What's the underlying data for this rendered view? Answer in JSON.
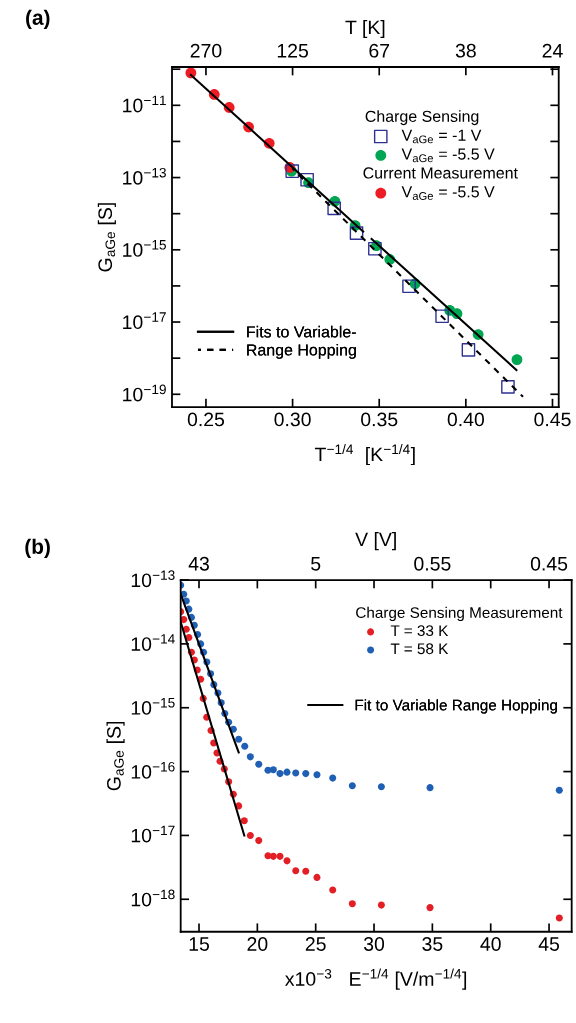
{
  "chart_data": [
    {
      "type": "scatter",
      "title": "(a)",
      "xlabel": "T$^{−1/4}$  [K$^{−1/4}$]",
      "ylabel": "G$_{aGe}$ [S]",
      "x2label": "T [K]",
      "legend_title": "Charge Sensing",
      "annotations": [
        "Current Measurement",
        "270",
        "125",
        "67",
        "38",
        "24"
      ],
      "log": "y",
      "legend": "right",
      "grid": false,
      "xlim": [
        0.2304,
        0.4536
      ],
      "xticks": [
        {
          "value": 0.25,
          "label": "0.25"
        },
        {
          "value": 0.3,
          "label": "0.30"
        },
        {
          "value": 0.35,
          "label": "0.35"
        },
        {
          "value": 0.4,
          "label": "0.40"
        },
        {
          "value": 0.45,
          "label": "0.45"
        }
      ],
      "ylim": [
        4.4e-20,
        1.15e-10
      ],
      "yticks": [
        {
          "value": 1e-10,
          "label": null
        },
        {
          "value": 1e-11,
          "label": "10$^{−11}$"
        },
        {
          "value": 1e-12,
          "label": null
        },
        {
          "value": 1e-13,
          "label": "10$^{−13}$"
        },
        {
          "value": 1e-14,
          "label": null
        },
        {
          "value": 1e-15,
          "label": "10$^{−15}$"
        },
        {
          "value": 1e-16,
          "label": null
        },
        {
          "value": 1e-17,
          "label": "10$^{−17}$"
        },
        {
          "value": 1e-18,
          "label": null
        },
        {
          "value": 1e-19,
          "label": "10$^{−19}$"
        }
      ],
      "series": [
        {
          "type": "line",
          "name": "Fits to Variable-",
          "color": "#000000",
          "line_style": "solid",
          "x": [
            0.2413,
            0.3407,
            0.343,
            0.3456,
            0.4292
          ],
          "values": [
            6.9e-11,
            3.2e-15,
            null,
            2e-15,
            4.7e-19
          ]
        },
        {
          "type": "line",
          "name": "Range Hopping",
          "color": "#000000",
          "line_style": "dashed",
          "x": [
            0.2998,
            0.433
          ],
          "values": [
            1.8e-13,
            8.5e-20
          ]
        },
        {
          "name": "V$_{aGe}$ = -1 V",
          "color": "#2e3192",
          "marker": "square",
          "x": [
            0.2998,
            0.3084,
            0.324,
            0.3369,
            0.3475,
            0.3672,
            0.3863,
            0.4015,
            0.4243
          ],
          "values": [
            1.5e-13,
            8.7e-14,
            1.4e-14,
            2.9e-15,
            1.07e-15,
            9.8e-17,
            1.45e-17,
            1.7e-18,
            1.6e-19
          ]
        },
        {
          "name": "V$_{aGe}$ = -5.5 V",
          "color": "#00a651",
          "marker": "circle",
          "x": [
            0.2994,
            0.3092,
            0.3244,
            0.3361,
            0.3484,
            0.3561,
            0.3707,
            0.3907,
            0.3949,
            0.4071,
            0.4295
          ],
          "values": [
            1.5e-13,
            7.2e-14,
            2.2e-14,
            4.7e-15,
            1.3e-15,
            5.4e-16,
            1.15e-16,
            2.1e-17,
            1.7e-17,
            4.5e-18,
            9.1e-19
          ]
        },
        {
          "name": "V$_{aGe}$ = -5.5 V",
          "color": "#ed1c24",
          "marker": "circle",
          "x": [
            0.2413,
            0.2548,
            0.2634,
            0.2746,
            0.2865,
            0.2984
          ],
          "values": [
            7.9e-11,
            2e-11,
            8.7e-12,
            2.5e-12,
            8.9e-13,
            1.9e-13
          ]
        }
      ]
    },
    {
      "type": "scatter",
      "title": "(b)",
      "xlabel": "x10$^{−3}$   E$^{−1/4}$ [V/m$^{−1/4}$]",
      "ylabel": "G$_{aGe}$ [S]",
      "x2label": "V [V]",
      "legend_title": "Charge Sensing Measurement",
      "log": "y",
      "legend": "top right",
      "grid": false,
      "xlim": [
        13.43,
        46.94
      ],
      "xticks": [
        15,
        20,
        25,
        30,
        35,
        40,
        45
      ],
      "annotations": [
        "43",
        "5",
        "0.55",
        "0.45"
      ],
      "ylim": [
        3.1e-19,
        1e-13
      ],
      "yticks": [
        {
          "value": 1e-13,
          "label": "10$^{−13}$"
        },
        {
          "value": 1e-14,
          "label": "10$^{−14}$"
        },
        {
          "value": 1e-15,
          "label": "10$^{−15}$"
        },
        {
          "value": 1e-16,
          "label": "10$^{−16}$"
        },
        {
          "value": 1e-17,
          "label": "10$^{−17}$"
        },
        {
          "value": 1e-18,
          "label": "10$^{−18}$"
        }
      ],
      "series": [
        {
          "name": "T = 33 K",
          "color": "#e31e24",
          "marker": "circle",
          "x": [
            13.43,
            13.69,
            13.91,
            14.13,
            14.35,
            14.6,
            14.85,
            15.14,
            15.36,
            15.66,
            16.03,
            16.26,
            16.54,
            16.8,
            17.17,
            17.54,
            17.94,
            18.4,
            18.88,
            19.4,
            20.12,
            20.91,
            21.37,
            21.94,
            22.54,
            23.29,
            24.15,
            25.11,
            26.46,
            28.14,
            30.63,
            34.8,
            45.88
          ],
          "values": [
            3.2e-14,
            2.4e-14,
            1.7e-14,
            1.26e-14,
            7.4e-15,
            5.6e-15,
            3.9e-15,
            2.8e-15,
            1.4e-15,
            7.1e-16,
            4.4e-16,
            2.8e-16,
            1.95e-16,
            1.45e-16,
            1.1e-16,
            6.9e-17,
            4.4e-17,
            2.9e-17,
            1.7e-17,
            1e-17,
            8.3e-18,
            4.8e-18,
            4.7e-18,
            4.7e-18,
            4e-18,
            2.8e-18,
            2.75e-18,
            2.2e-18,
            1.4e-18,
            8.5e-19,
            8.1e-19,
            7.4e-19,
            5.1e-19
          ]
        },
        {
          "name": "T = 58 K",
          "color": "#1f5fb4",
          "marker": "circle",
          "x": [
            13.43,
            13.69,
            13.91,
            14.13,
            14.35,
            14.6,
            14.88,
            15.14,
            15.39,
            15.67,
            15.99,
            16.27,
            16.62,
            16.9,
            17.21,
            17.54,
            17.94,
            18.4,
            18.92,
            19.4,
            20.12,
            20.91,
            21.37,
            21.94,
            22.54,
            23.29,
            24.15,
            25.11,
            26.46,
            28.14,
            30.63,
            34.8,
            45.88
          ],
          "values": [
            8.3e-14,
            6e-14,
            4.7e-14,
            3.5e-14,
            2.6e-14,
            1.95e-14,
            1.4e-14,
            1e-14,
            7.4e-15,
            5.2e-15,
            3.4e-15,
            2.3e-15,
            1.7e-15,
            1.2e-15,
            8.1e-16,
            5.9e-16,
            4.6e-16,
            3.2e-16,
            2.5e-16,
            1.7e-16,
            1.3e-16,
            1.05e-16,
            1.07e-16,
            9.3e-17,
            9.8e-17,
            9.5e-17,
            9.3e-17,
            8.9e-17,
            7.9e-17,
            6e-17,
            5.8e-17,
            5.6e-17,
            5.1e-17
          ]
        },
        {
          "type": "line",
          "name": "Fit to Variable Range Hopping",
          "color": "#000000",
          "line_style": "solid",
          "x": [
            13.43,
            18.4
          ],
          "values": [
            6e-14,
            2e-16
          ]
        },
        {
          "type": "line",
          "color": "#000000",
          "line_style": "solid",
          "x": [
            13.43,
            18.88
          ],
          "values": [
            2.2e-14,
            1e-17
          ]
        }
      ]
    }
  ]
}
